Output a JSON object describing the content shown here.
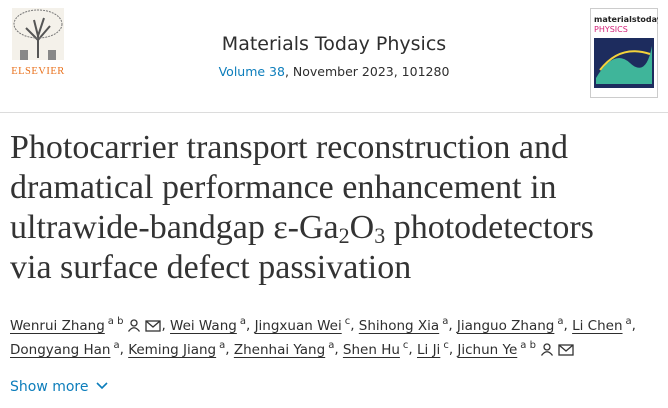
{
  "header": {
    "publisher": "ELSEVIER",
    "journal": "Materials Today Physics",
    "volume": "Volume 38",
    "issue_info": ", November 2023, 101280",
    "cover": {
      "brand": "materialstoday",
      "subject": "PHYSICS"
    }
  },
  "title": {
    "line1": "Photocarrier transport reconstruction and",
    "line2": "dramatical performance enhancement in",
    "line3": [
      "ultrawide-bandgap ε-Ga",
      "2",
      "O",
      "3",
      " photodetectors"
    ],
    "line4": "via surface defect passivation"
  },
  "author_lines": [
    [
      {
        "name": "Wenrui Zhang",
        "aff": "a b",
        "contact": true,
        "sep": ","
      },
      {
        "name": "Wei Wang",
        "aff": "a",
        "contact": false,
        "sep": ","
      },
      {
        "name": "Jingxuan Wei",
        "aff": "c",
        "contact": false,
        "sep": ","
      },
      {
        "name": "Shihong Xia",
        "aff": "a",
        "contact": false,
        "sep": ","
      },
      {
        "name": "Jianguo Zhang",
        "aff": "a",
        "contact": false,
        "sep": ","
      },
      {
        "name": "Li Chen",
        "aff": "a",
        "contact": false,
        "sep": ","
      }
    ],
    [
      {
        "name": "Dongyang Han",
        "aff": "a",
        "contact": false,
        "sep": ","
      },
      {
        "name": "Keming Jiang",
        "aff": "a",
        "contact": false,
        "sep": ","
      },
      {
        "name": "Zhenhai Yang",
        "aff": "a",
        "contact": false,
        "sep": ","
      },
      {
        "name": "Shen Hu",
        "aff": "c",
        "contact": false,
        "sep": ","
      },
      {
        "name": "Li Ji",
        "aff": "c",
        "contact": false,
        "sep": ","
      },
      {
        "name": "Jichun Ye",
        "aff": "a b",
        "contact": true,
        "sep": null
      }
    ]
  ],
  "show_more": "Show more"
}
